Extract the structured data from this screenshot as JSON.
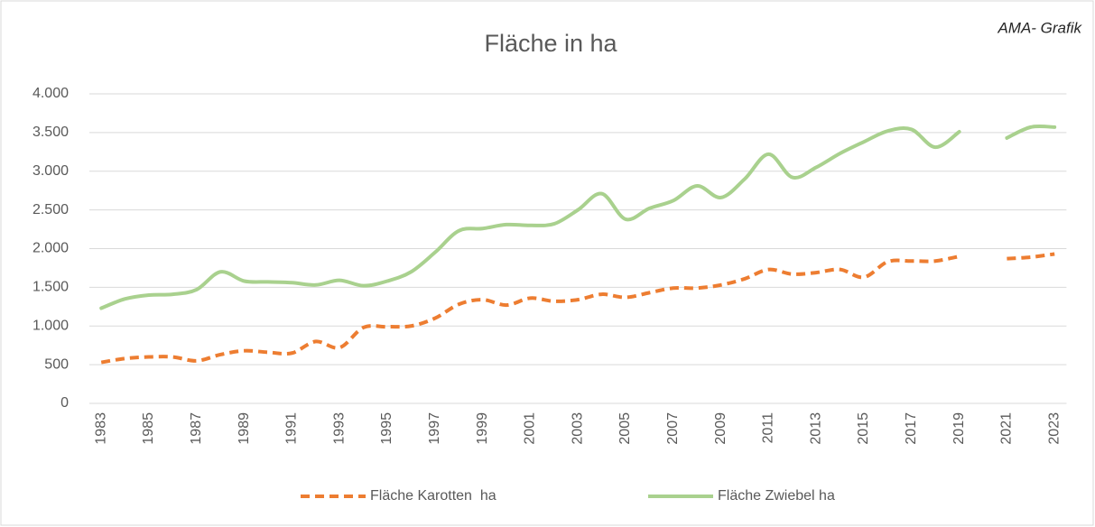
{
  "chart_data": {
    "type": "line",
    "title": "Fläche in ha",
    "annotation": "AMA- Grafik",
    "categories": [
      "1983",
      null,
      "1985",
      null,
      "1987",
      null,
      "1989",
      null,
      "1991",
      null,
      "1993",
      null,
      "1995",
      null,
      "1997",
      null,
      "1999",
      null,
      "2001",
      null,
      "2003",
      null,
      "2005",
      null,
      "2007",
      null,
      "2009",
      null,
      "2011",
      null,
      "2013",
      null,
      "2015",
      null,
      "2017",
      null,
      "2019",
      null,
      "2021",
      null,
      "2023"
    ],
    "series": [
      {
        "name": "Fläche Karotten  ha",
        "color": "#ed7d31",
        "dashed": true,
        "values": [
          530,
          580,
          600,
          600,
          550,
          630,
          680,
          660,
          650,
          800,
          720,
          980,
          990,
          1000,
          1100,
          1280,
          1340,
          1270,
          1360,
          1320,
          1340,
          1410,
          1370,
          1430,
          1490,
          1490,
          1530,
          1610,
          1730,
          1670,
          1690,
          1730,
          1630,
          1830,
          1840,
          1840,
          1900,
          null,
          1870,
          1890,
          1930
        ]
      },
      {
        "name": "Fläche Zwiebel ha",
        "color": "#a9d18e",
        "dashed": false,
        "values": [
          1230,
          1350,
          1400,
          1410,
          1470,
          1700,
          1580,
          1570,
          1560,
          1530,
          1590,
          1520,
          1580,
          1700,
          1950,
          2230,
          2260,
          2310,
          2300,
          2320,
          2500,
          2710,
          2380,
          2520,
          2620,
          2810,
          2660,
          2900,
          3220,
          2920,
          3050,
          3230,
          3380,
          3520,
          3540,
          3310,
          3510,
          null,
          3430,
          3570,
          3570
        ]
      }
    ],
    "ylim": [
      0,
      4000
    ],
    "yticks": [
      0,
      500,
      {
        "value": 1000,
        "label": "1.000"
      },
      {
        "value": 1500,
        "label": "1.500"
      },
      {
        "value": 2000,
        "label": "2.000"
      },
      {
        "value": 2500,
        "label": "2.500"
      },
      {
        "value": 3000,
        "label": "3.000"
      },
      {
        "value": 3500,
        "label": "3.500"
      },
      {
        "value": 4000,
        "label": "4.000"
      }
    ],
    "grid": true,
    "legend": "bottom"
  }
}
